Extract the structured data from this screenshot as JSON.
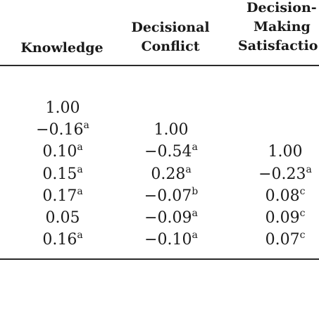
{
  "headers": {
    "knowledge": [
      "Knowledge"
    ],
    "conflict": [
      "Decisional",
      "Conflict"
    ],
    "satisfaction": [
      "Decision-",
      "Making",
      "Satisfactio"
    ]
  },
  "rows": [
    [
      {
        "v": "1.00",
        "s": ""
      },
      null,
      null
    ],
    [
      {
        "v": "−0.16",
        "s": "a"
      },
      {
        "v": "1.00",
        "s": ""
      },
      null
    ],
    [
      {
        "v": "0.10",
        "s": "a"
      },
      {
        "v": "−0.54",
        "s": "a"
      },
      {
        "v": "1.00",
        "s": ""
      }
    ],
    [
      {
        "v": "0.15",
        "s": "a"
      },
      {
        "v": "0.28",
        "s": "a"
      },
      {
        "v": "−0.23",
        "s": "a"
      }
    ],
    [
      {
        "v": "0.17",
        "s": "a"
      },
      {
        "v": "−0.07",
        "s": "b"
      },
      {
        "v": "0.08",
        "s": "c"
      }
    ],
    [
      {
        "v": "0.05",
        "s": ""
      },
      {
        "v": "−0.09",
        "s": "a"
      },
      {
        "v": "0.09",
        "s": "c"
      }
    ],
    [
      {
        "v": "0.16",
        "s": "a"
      },
      {
        "v": "−0.10",
        "s": "a"
      },
      {
        "v": "0.07",
        "s": "c"
      }
    ]
  ]
}
